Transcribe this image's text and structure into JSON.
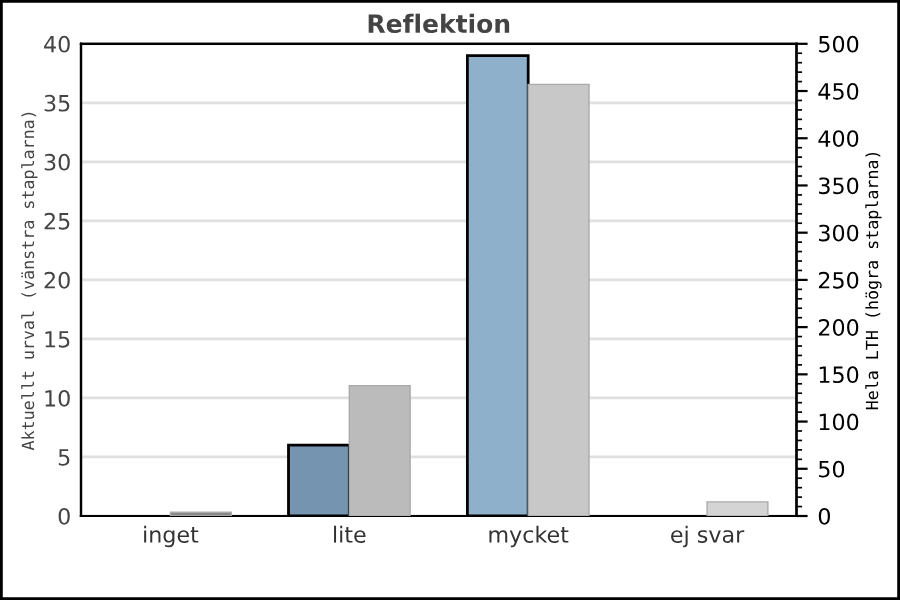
{
  "chart_data": {
    "type": "bar",
    "title": "Reflektion",
    "ylabel": "Aktuellt urval (vänstra staplarna)",
    "y2label": "Hela LTH (högra staplarna)",
    "categories": [
      "inget",
      "lite",
      "mycket",
      "ej svar"
    ],
    "series": [
      {
        "colors": [
          "#8fb0cb",
          "#7494b0",
          "#8fb0cb",
          "#8fb0cb"
        ],
        "values": [
          0,
          6,
          39,
          0
        ]
      },
      {
        "colors": [
          "#888888",
          "#bbbbbb",
          "#c8c8c8",
          "#d4d4d4"
        ],
        "values": [
          4,
          138,
          457,
          15
        ],
        "axis": "y2"
      }
    ],
    "ylim": [
      0,
      40
    ],
    "yticks": [
      0,
      5,
      10,
      15,
      20,
      25,
      30,
      35,
      40
    ],
    "y2lim": [
      0,
      500
    ],
    "y2ticks": [
      0,
      50,
      100,
      150,
      200,
      250,
      300,
      350,
      400,
      450,
      500
    ],
    "grid": "y",
    "legend": false
  }
}
